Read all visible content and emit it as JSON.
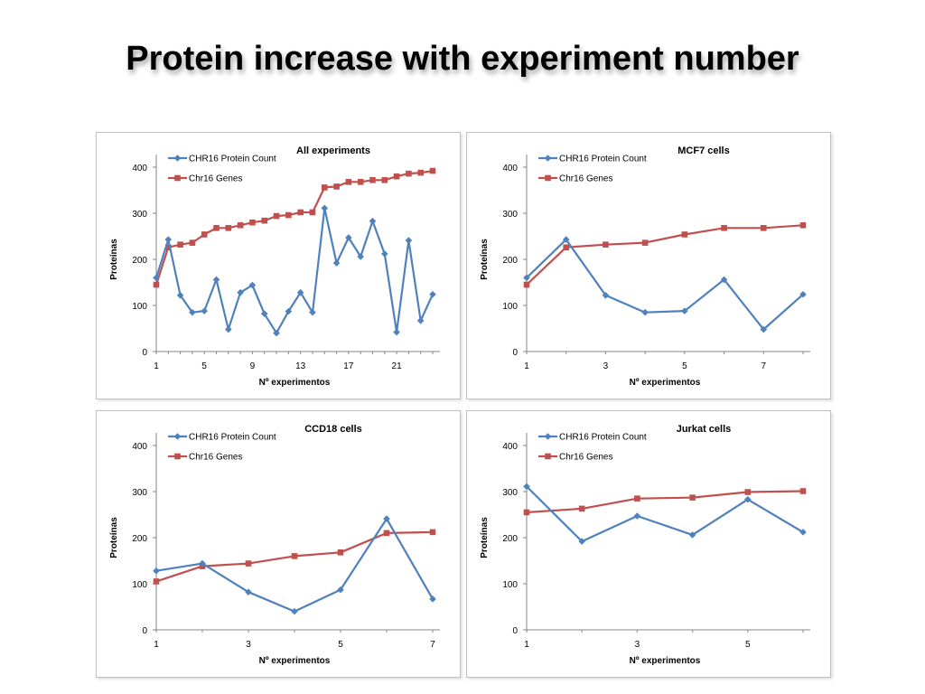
{
  "slide": {
    "title": "Protein increase with experiment number"
  },
  "colors": {
    "protein": "#4f81bd",
    "genes": "#c0504d",
    "axis": "#868686",
    "text": "#000000"
  },
  "chart_data": [
    {
      "type": "line",
      "title": "All experiments",
      "xlabel": "Nº experimentos",
      "ylabel": "Proteínas",
      "ylim": [
        0,
        400
      ],
      "yticks": [
        0,
        100,
        200,
        300,
        400
      ],
      "x": [
        1,
        2,
        3,
        4,
        5,
        6,
        7,
        8,
        9,
        10,
        11,
        12,
        13,
        14,
        15,
        16,
        17,
        18,
        19,
        20,
        21,
        22,
        23,
        24
      ],
      "xtick_labels": [
        "1",
        "5",
        "9",
        "13",
        "17",
        "21"
      ],
      "xtick_values": [
        1,
        5,
        9,
        13,
        17,
        21
      ],
      "grid": false,
      "legend_position": "top-left",
      "series": [
        {
          "name": "CHR16 Protein Count",
          "marker": "diamond",
          "values": [
            160,
            243,
            122,
            85,
            88,
            156,
            48,
            128,
            144,
            82,
            40,
            87,
            128,
            85,
            311,
            192,
            247,
            206,
            283,
            212,
            42,
            241,
            67,
            124
          ]
        },
        {
          "name": "Chr16 Genes",
          "marker": "square",
          "values": [
            145,
            226,
            232,
            236,
            254,
            268,
            268,
            274,
            280,
            284,
            294,
            296,
            302,
            302,
            356,
            358,
            368,
            368,
            372,
            372,
            380,
            386,
            388,
            392
          ]
        }
      ]
    },
    {
      "type": "line",
      "title": "MCF7 cells",
      "xlabel": "Nº experimentos",
      "ylabel": "Proteínas",
      "ylim": [
        0,
        400
      ],
      "yticks": [
        0,
        100,
        200,
        300,
        400
      ],
      "x": [
        1,
        2,
        3,
        4,
        5,
        6,
        7,
        8
      ],
      "xtick_labels": [
        "1",
        "3",
        "5",
        "7"
      ],
      "xtick_values": [
        1,
        3,
        5,
        7
      ],
      "grid": false,
      "legend_position": "top-left",
      "series": [
        {
          "name": "CHR16 Protein Count",
          "marker": "diamond",
          "values": [
            160,
            243,
            122,
            85,
            88,
            156,
            48,
            124
          ]
        },
        {
          "name": "Chr16 Genes",
          "marker": "square",
          "values": [
            145,
            226,
            232,
            236,
            254,
            268,
            268,
            274
          ]
        }
      ]
    },
    {
      "type": "line",
      "title": "CCD18 cells",
      "xlabel": "Nº experimentos",
      "ylabel": "Proteínas",
      "ylim": [
        0,
        400
      ],
      "yticks": [
        0,
        100,
        200,
        300,
        400
      ],
      "x": [
        1,
        2,
        3,
        4,
        5,
        6,
        7
      ],
      "xtick_labels": [
        "1",
        "3",
        "5",
        "7"
      ],
      "xtick_values": [
        1,
        3,
        5,
        7
      ],
      "grid": false,
      "legend_position": "top-left",
      "series": [
        {
          "name": "CHR16 Protein Count",
          "marker": "diamond",
          "values": [
            128,
            144,
            82,
            40,
            87,
            241,
            67
          ]
        },
        {
          "name": "Chr16 Genes",
          "marker": "square",
          "values": [
            105,
            138,
            144,
            160,
            168,
            210,
            212
          ]
        }
      ]
    },
    {
      "type": "line",
      "title": "Jurkat cells",
      "xlabel": "Nº experimentos",
      "ylabel": "Proteínas",
      "ylim": [
        0,
        400
      ],
      "yticks": [
        0,
        100,
        200,
        300,
        400
      ],
      "x": [
        1,
        2,
        3,
        4,
        5,
        6
      ],
      "xtick_labels": [
        "1",
        "3",
        "5"
      ],
      "xtick_values": [
        1,
        3,
        5
      ],
      "grid": false,
      "legend_position": "top-left",
      "series": [
        {
          "name": "CHR16 Protein Count",
          "marker": "diamond",
          "values": [
            311,
            192,
            247,
            206,
            283,
            212
          ]
        },
        {
          "name": "Chr16 Genes",
          "marker": "square",
          "values": [
            255,
            263,
            285,
            287,
            299,
            301
          ]
        }
      ]
    }
  ]
}
